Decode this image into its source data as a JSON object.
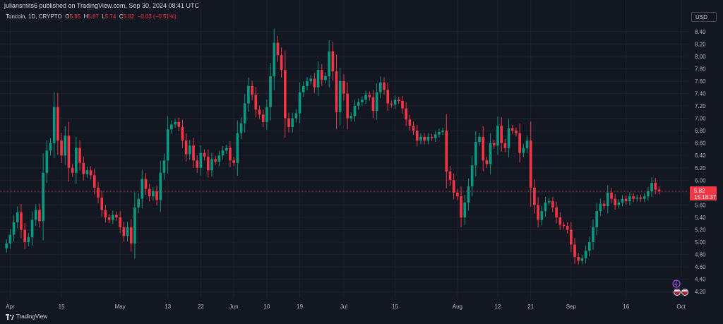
{
  "header": {
    "published": "juliansmits6 published on TradingView.com, Sep 30, 2024 08:41 UTC"
  },
  "legend": {
    "symbol": "Toncoin, 1D, CRYPTO",
    "o_label": "O",
    "o_value": "5.85",
    "h_label": "H",
    "h_value": "5.87",
    "l_label": "L",
    "l_value": "5.74",
    "c_label": "C",
    "c_value": "5.82",
    "change": "−0.03 (−0.51%)"
  },
  "currency": "USD",
  "price_label": {
    "value": "5.82",
    "countdown": "15:18:37"
  },
  "footer": {
    "brand": "TradingView"
  },
  "colors": {
    "up": "#089981",
    "down": "#f23645",
    "bg": "#131722",
    "grid": "#1e222d"
  },
  "chart_data": {
    "type": "candlestick",
    "y_ticks": [
      "4.20",
      "4.40",
      "4.60",
      "4.80",
      "5.00",
      "5.20",
      "5.40",
      "5.60",
      "5.80",
      "6.00",
      "6.20",
      "6.40",
      "6.60",
      "6.80",
      "7.00",
      "7.20",
      "7.40",
      "7.60",
      "7.80",
      "8.00",
      "8.20",
      "8.40"
    ],
    "ylim": [
      4.1,
      8.5
    ],
    "x_ticks": [
      {
        "label": "Apr",
        "day": 1
      },
      {
        "label": "15",
        "day": 15
      },
      {
        "label": "May",
        "day": 31
      },
      {
        "label": "13",
        "day": 44
      },
      {
        "label": "22",
        "day": 53
      },
      {
        "label": "Jun",
        "day": 62
      },
      {
        "label": "10",
        "day": 71
      },
      {
        "label": "19",
        "day": 80
      },
      {
        "label": "Jul",
        "day": 92
      },
      {
        "label": "15",
        "day": 106
      },
      {
        "label": "Aug",
        "day": 123
      },
      {
        "label": "12",
        "day": 134
      },
      {
        "label": "21",
        "day": 143
      },
      {
        "label": "Sep",
        "day": 154
      },
      {
        "label": "16",
        "day": 169
      },
      {
        "label": "Oct",
        "day": 184
      }
    ],
    "x_range": [
      -1,
      186
    ],
    "last_price": 5.82,
    "closes": [
      4.98,
      5.12,
      5.32,
      5.48,
      5.2,
      5.0,
      5.08,
      5.36,
      5.52,
      5.34,
      6.12,
      6.48,
      6.6,
      7.18,
      6.64,
      6.4,
      6.72,
      6.2,
      6.12,
      6.52,
      6.28,
      6.1,
      6.16,
      6.08,
      5.88,
      5.72,
      5.52,
      5.4,
      5.36,
      5.44,
      5.4,
      5.24,
      5.1,
      5.24,
      4.98,
      5.56,
      5.7,
      6.02,
      5.86,
      5.74,
      5.82,
      5.68,
      6.12,
      6.32,
      6.82,
      6.9,
      6.94,
      6.86,
      6.64,
      6.42,
      6.56,
      6.32,
      6.2,
      6.44,
      6.38,
      6.16,
      6.34,
      6.3,
      6.4,
      6.48,
      6.52,
      6.32,
      6.28,
      6.76,
      6.92,
      7.24,
      7.52,
      7.38,
      7.14,
      7.06,
      6.94,
      7.18,
      7.68,
      8.22,
      8.02,
      7.78,
      7.0,
      6.86,
      7.0,
      7.08,
      7.42,
      7.52,
      7.6,
      7.64,
      7.5,
      7.78,
      7.62,
      7.68,
      8.08,
      7.76,
      7.1,
      7.6,
      7.4,
      7.0,
      7.04,
      7.2,
      7.26,
      7.3,
      7.38,
      7.34,
      7.12,
      7.42,
      7.58,
      7.46,
      7.24,
      7.22,
      7.3,
      7.28,
      7.16,
      6.98,
      6.88,
      6.8,
      6.64,
      6.7,
      6.64,
      6.7,
      6.68,
      6.74,
      6.78,
      6.8,
      6.14,
      6.0,
      5.8,
      5.74,
      5.4,
      5.64,
      5.9,
      6.24,
      6.62,
      6.7,
      6.32,
      6.26,
      6.6,
      6.56,
      6.88,
      6.6,
      6.52,
      6.84,
      6.8,
      6.76,
      6.44,
      6.52,
      6.64,
      5.88,
      5.6,
      5.36,
      5.5,
      5.64,
      5.66,
      5.56,
      5.4,
      5.28,
      5.26,
      5.2,
      4.96,
      4.76,
      4.7,
      4.74,
      4.86,
      5.0,
      5.24,
      5.5,
      5.62,
      5.58,
      5.8,
      5.7,
      5.6,
      5.64,
      5.7,
      5.66,
      5.74,
      5.7,
      5.72,
      5.7,
      5.74,
      5.82,
      5.96,
      5.85,
      5.82
    ]
  }
}
